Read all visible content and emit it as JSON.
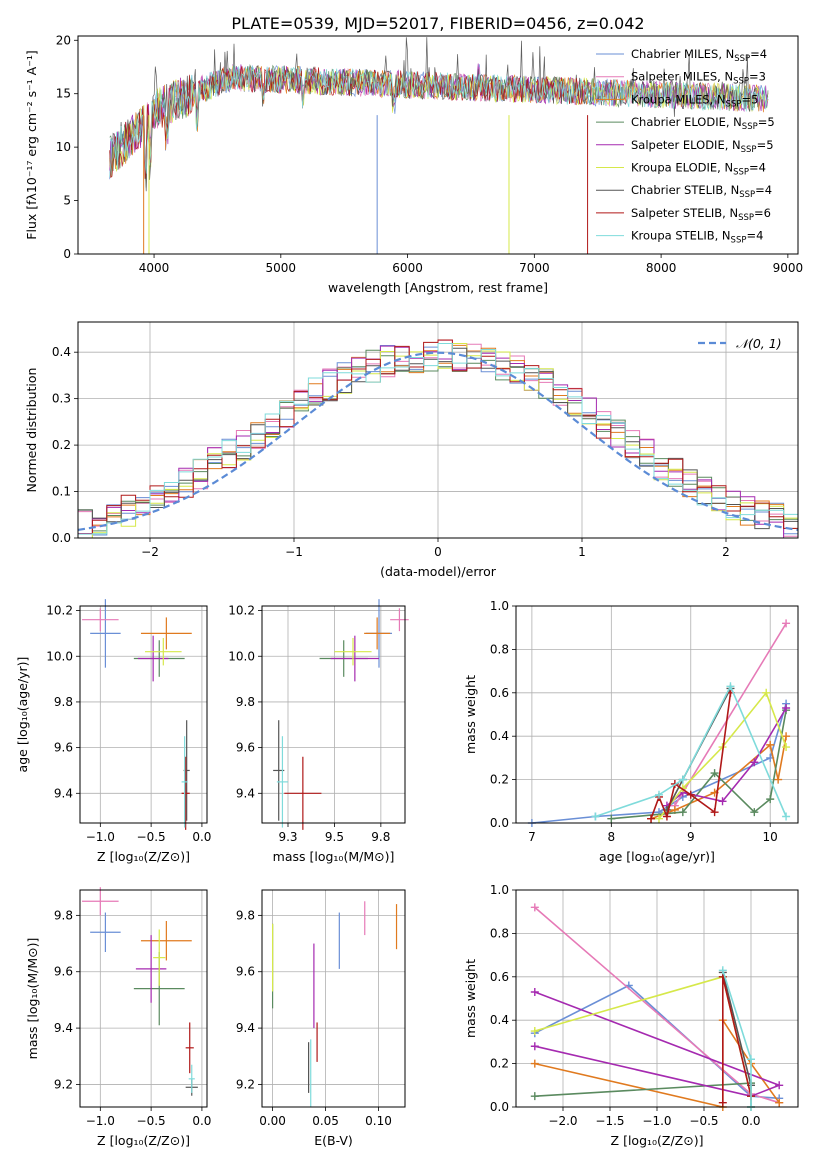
{
  "title": "PLATE=0539, MJD=52017, FIBERID=0456, z=0.042",
  "chart_data": [
    {
      "type": "line",
      "panel": "spectrum",
      "title": "PLATE=0539, MJD=52017, FIBERID=0456, z=0.042",
      "xlabel": "wavelength [Angstrom, rest frame]",
      "ylabel": "Flux [fλ10⁻¹⁷ erg cm⁻² s⁻¹ A⁻¹]",
      "xlim": [
        3400,
        9080
      ],
      "ylim": [
        0,
        20.4
      ],
      "xticks": [
        4000,
        5000,
        6000,
        7000,
        8000,
        9000
      ],
      "yticks": [
        0,
        5,
        10,
        15,
        20
      ],
      "grid": false,
      "legend_position": "upper right",
      "series": [
        {
          "name": "Chabrier MILES, N",
          "sub": "SSP",
          "suffix": "=4",
          "color": "#6a8fd6"
        },
        {
          "name": "Salpeter MILES, N",
          "sub": "SSP",
          "suffix": "=3",
          "color": "#e67ab7"
        },
        {
          "name": "Kroupa MILES, N",
          "sub": "SSP",
          "suffix": "=5",
          "color": "#e07a1f"
        },
        {
          "name": "Chabrier ELODIE, N",
          "sub": "SSP",
          "suffix": "=5",
          "color": "#5a8a5f"
        },
        {
          "name": "Salpeter ELODIE, N",
          "sub": "SSP",
          "suffix": "=5",
          "color": "#a52ab0"
        },
        {
          "name": "Kroupa ELODIE, N",
          "sub": "SSP",
          "suffix": "=4",
          "color": "#d6e84a"
        },
        {
          "name": "Chabrier STELIB, N",
          "sub": "SSP",
          "suffix": "=4",
          "color": "#555555"
        },
        {
          "name": "Salpeter STELIB, N",
          "sub": "SSP",
          "suffix": "=6",
          "color": "#b01818"
        },
        {
          "name": "Kroupa STELIB, N",
          "sub": "SSP",
          "suffix": "=4",
          "color": "#7fdbdb"
        }
      ]
    },
    {
      "type": "histogram",
      "panel": "residuals",
      "xlabel": "(data-model)/error",
      "ylabel": "Normed distribution",
      "xlim": [
        -2.5,
        2.5
      ],
      "ylim": [
        0,
        0.465
      ],
      "xticks": [
        -2,
        -1,
        0,
        1,
        2
      ],
      "yticks": [
        0.0,
        0.1,
        0.2,
        0.3,
        0.4
      ],
      "grid": true,
      "legend": "𝒩(0, 1)",
      "legend_position": "upper right",
      "bins": [
        -2.5,
        2.5,
        50
      ],
      "envelope": [
        0.03,
        0.04,
        0.05,
        0.06,
        0.07,
        0.085,
        0.1,
        0.12,
        0.14,
        0.16,
        0.18,
        0.2,
        0.22,
        0.245,
        0.27,
        0.29,
        0.31,
        0.33,
        0.345,
        0.36,
        0.37,
        0.38,
        0.385,
        0.39,
        0.392,
        0.392,
        0.39,
        0.385,
        0.38,
        0.37,
        0.36,
        0.345,
        0.33,
        0.31,
        0.29,
        0.27,
        0.245,
        0.22,
        0.2,
        0.18,
        0.16,
        0.14,
        0.12,
        0.1,
        0.085,
        0.07,
        0.06,
        0.05,
        0.04,
        0.03
      ],
      "series_colors": [
        "#6a8fd6",
        "#e67ab7",
        "#e07a1f",
        "#5a8a5f",
        "#a52ab0",
        "#d6e84a",
        "#555555",
        "#b01818",
        "#7fdbdb"
      ]
    },
    {
      "type": "errorbar",
      "panel": "age-vs-Z",
      "xlabel": "Z [log₁₀(Z/Z⊙)]",
      "ylabel": "age  [log₁₀(age/yr)]",
      "xlim": [
        -1.2,
        0.05
      ],
      "ylim": [
        9.27,
        10.22
      ],
      "xticks": [
        -1.0,
        -0.5,
        0.0
      ],
      "yticks": [
        9.4,
        9.6,
        9.8,
        10.0,
        10.2
      ],
      "points": [
        {
          "x": -0.95,
          "xerr": 0.15,
          "y": 10.1,
          "yerr": 0.15,
          "c": 0
        },
        {
          "x": -1.0,
          "xerr": 0.18,
          "y": 10.16,
          "yerr": 0.05,
          "c": 1
        },
        {
          "x": -0.35,
          "xerr": 0.25,
          "y": 10.1,
          "yerr": 0.07,
          "c": 2
        },
        {
          "x": -0.42,
          "xerr": 0.25,
          "y": 9.99,
          "yerr": 0.08,
          "c": 3
        },
        {
          "x": -0.48,
          "xerr": 0.15,
          "y": 9.99,
          "yerr": 0.1,
          "c": 4
        },
        {
          "x": -0.38,
          "xerr": 0.18,
          "y": 10.02,
          "yerr": 0.06,
          "c": 5
        },
        {
          "x": -0.15,
          "xerr": 0.03,
          "y": 9.5,
          "yerr": 0.22,
          "c": 6
        },
        {
          "x": -0.16,
          "xerr": 0.04,
          "y": 9.4,
          "yerr": 0.16,
          "c": 7
        },
        {
          "x": -0.17,
          "xerr": 0.03,
          "y": 9.45,
          "yerr": 0.2,
          "c": 8
        }
      ]
    },
    {
      "type": "errorbar",
      "panel": "age-vs-mass",
      "xlabel": "mass [log₁₀(M/M⊙)]",
      "ylabel": "",
      "xlim": [
        9.11,
        9.88
      ],
      "ylim": [
        9.27,
        10.22
      ],
      "xticks": [
        9.25,
        9.5,
        9.75
      ],
      "yticks": [
        9.4,
        9.6,
        9.8,
        10.0,
        10.2
      ],
      "points": [
        {
          "x": 9.74,
          "xerr": 0.07,
          "y": 10.1,
          "yerr": 0.15,
          "c": 0
        },
        {
          "x": 9.85,
          "xerr": 0.05,
          "y": 10.16,
          "yerr": 0.05,
          "c": 1
        },
        {
          "x": 9.73,
          "xerr": 0.07,
          "y": 10.1,
          "yerr": 0.07,
          "c": 2
        },
        {
          "x": 9.55,
          "xerr": 0.13,
          "y": 9.99,
          "yerr": 0.08,
          "c": 3
        },
        {
          "x": 9.61,
          "xerr": 0.13,
          "y": 9.99,
          "yerr": 0.1,
          "c": 4
        },
        {
          "x": 9.6,
          "xerr": 0.1,
          "y": 10.02,
          "yerr": 0.06,
          "c": 5
        },
        {
          "x": 9.2,
          "xerr": 0.03,
          "y": 9.5,
          "yerr": 0.22,
          "c": 6
        },
        {
          "x": 9.33,
          "xerr": 0.1,
          "y": 9.4,
          "yerr": 0.16,
          "c": 7
        },
        {
          "x": 9.22,
          "xerr": 0.03,
          "y": 9.45,
          "yerr": 0.2,
          "c": 8
        }
      ]
    },
    {
      "type": "line",
      "panel": "weight-vs-age",
      "xlabel": "age  [log₁₀(age/yr)]",
      "ylabel": "mass weight",
      "xlim": [
        6.8,
        10.35
      ],
      "ylim": [
        0,
        1.0
      ],
      "xticks": [
        7,
        8,
        9,
        10
      ],
      "yticks": [
        0.0,
        0.2,
        0.4,
        0.6,
        0.8,
        1.0
      ],
      "series": [
        {
          "c": 0,
          "x": [
            7.0,
            7.8,
            8.6,
            8.9,
            10.0,
            10.2
          ],
          "y": [
            0.0,
            0.03,
            0.05,
            0.12,
            0.3,
            0.55
          ]
        },
        {
          "c": 1,
          "x": [
            8.8,
            10.2
          ],
          "y": [
            0.08,
            0.92
          ]
        },
        {
          "c": 2,
          "x": [
            8.5,
            8.8,
            9.3,
            10.0,
            10.1,
            10.2
          ],
          "y": [
            0.02,
            0.06,
            0.14,
            0.36,
            0.2,
            0.4
          ]
        },
        {
          "c": 3,
          "x": [
            8.0,
            8.9,
            9.3,
            9.8,
            10.0,
            10.2
          ],
          "y": [
            0.02,
            0.05,
            0.23,
            0.05,
            0.11,
            0.52
          ]
        },
        {
          "c": 4,
          "x": [
            8.7,
            8.9,
            9.4,
            9.8,
            10.2
          ],
          "y": [
            0.08,
            0.14,
            0.1,
            0.28,
            0.53
          ]
        },
        {
          "c": 5,
          "x": [
            8.6,
            8.9,
            9.4,
            9.95,
            10.2
          ],
          "y": [
            0.02,
            0.16,
            0.35,
            0.6,
            0.35
          ]
        },
        {
          "c": 6,
          "x": [
            8.7,
            8.9,
            9.5
          ],
          "y": [
            0.06,
            0.2,
            0.62
          ]
        },
        {
          "c": 7,
          "x": [
            8.5,
            8.6,
            8.7,
            8.8,
            9.0,
            9.3,
            9.5
          ],
          "y": [
            0.02,
            0.12,
            0.03,
            0.18,
            0.13,
            0.05,
            0.6
          ]
        },
        {
          "c": 8,
          "x": [
            7.8,
            8.6,
            8.9,
            9.5,
            10.2
          ],
          "y": [
            0.03,
            0.13,
            0.2,
            0.63,
            0.03
          ]
        }
      ]
    },
    {
      "type": "errorbar",
      "panel": "mass-vs-Z",
      "xlabel": "Z [log₁₀(Z/Z⊙)]",
      "ylabel": "mass [log₁₀(M/M⊙)]",
      "xlim": [
        -1.2,
        0.05
      ],
      "ylim": [
        9.12,
        9.89
      ],
      "xticks": [
        -1.0,
        -0.5,
        0.0
      ],
      "yticks": [
        9.2,
        9.4,
        9.6,
        9.8
      ],
      "points": [
        {
          "x": -0.95,
          "xerr": 0.15,
          "y": 9.74,
          "yerr": 0.07,
          "c": 0
        },
        {
          "x": -1.0,
          "xerr": 0.18,
          "y": 9.85,
          "yerr": 0.05,
          "c": 1
        },
        {
          "x": -0.35,
          "xerr": 0.25,
          "y": 9.71,
          "yerr": 0.07,
          "c": 2
        },
        {
          "x": -0.42,
          "xerr": 0.25,
          "y": 9.54,
          "yerr": 0.13,
          "c": 3
        },
        {
          "x": -0.5,
          "xerr": 0.15,
          "y": 9.61,
          "yerr": 0.12,
          "c": 4
        },
        {
          "x": -0.42,
          "xerr": 0.06,
          "y": 9.65,
          "yerr": 0.1,
          "c": 5
        },
        {
          "x": -0.1,
          "xerr": 0.06,
          "y": 9.19,
          "yerr": 0.03,
          "c": 6
        },
        {
          "x": -0.12,
          "xerr": 0.04,
          "y": 9.33,
          "yerr": 0.09,
          "c": 7
        },
        {
          "x": -0.1,
          "xerr": 0.03,
          "y": 9.22,
          "yerr": 0.05,
          "c": 8
        }
      ]
    },
    {
      "type": "errorbar",
      "panel": "mass-vs-ebv",
      "xlabel": "E(B-V)",
      "ylabel": "",
      "xlim": [
        -0.01,
        0.125
      ],
      "ylim": [
        9.12,
        9.89
      ],
      "xticks": [
        0.0,
        0.05,
        0.1
      ],
      "yticks": [
        9.2,
        9.4,
        9.6,
        9.8
      ],
      "points": [
        {
          "x": 0.063,
          "xerr": 0,
          "y": 9.71,
          "yerr": 0.1,
          "c": 0
        },
        {
          "x": 0.087,
          "xerr": 0,
          "y": 9.79,
          "yerr": 0.06,
          "c": 1
        },
        {
          "x": 0.117,
          "xerr": 0,
          "y": 9.76,
          "yerr": 0.08,
          "c": 2
        },
        {
          "x": 0.0,
          "xerr": 0,
          "y": 9.62,
          "yerr": 0.15,
          "c": 3
        },
        {
          "x": 0.039,
          "xerr": 0,
          "y": 9.55,
          "yerr": 0.15,
          "c": 4
        },
        {
          "x": 0.0,
          "xerr": 0,
          "y": 9.65,
          "yerr": 0.12,
          "c": 5
        },
        {
          "x": 0.034,
          "xerr": 0,
          "y": 9.26,
          "yerr": 0.09,
          "c": 6
        },
        {
          "x": 0.042,
          "xerr": 0,
          "y": 9.35,
          "yerr": 0.07,
          "c": 7
        },
        {
          "x": 0.036,
          "xerr": 0,
          "y": 9.24,
          "yerr": 0.12,
          "c": 8
        }
      ]
    },
    {
      "type": "line",
      "panel": "weight-vs-Z",
      "xlabel": "Z [log₁₀(Z/Z⊙)]",
      "ylabel": "mass weight",
      "xlim": [
        -2.5,
        0.5
      ],
      "ylim": [
        0,
        1.0
      ],
      "xticks": [
        -2.0,
        -1.5,
        -1.0,
        -0.5,
        0.0
      ],
      "yticks": [
        0.0,
        0.2,
        0.4,
        0.6,
        0.8,
        1.0
      ],
      "series": [
        {
          "c": 0,
          "x": [
            -2.3,
            -1.3,
            0.0,
            0.3
          ],
          "y": [
            0.34,
            0.56,
            0.05,
            0.04
          ]
        },
        {
          "c": 1,
          "x": [
            -2.3,
            0.0,
            0.3
          ],
          "y": [
            0.92,
            0.06,
            0.02
          ]
        },
        {
          "c": 2,
          "x": [
            -2.3,
            -0.3,
            -0.3,
            0.0,
            0.3
          ],
          "y": [
            0.2,
            0.0,
            0.4,
            0.2,
            0.02
          ]
        },
        {
          "c": 3,
          "x": [
            -2.3,
            0.0,
            0.0
          ],
          "y": [
            0.05,
            0.11,
            0.0
          ]
        },
        {
          "c": 4,
          "x": [
            -2.3,
            0.0,
            0.3,
            -2.3
          ],
          "y": [
            0.28,
            0.05,
            0.1,
            0.53
          ]
        },
        {
          "c": 5,
          "x": [
            -2.3,
            -0.3,
            0.0
          ],
          "y": [
            0.35,
            0.6,
            0.05
          ]
        },
        {
          "c": 6,
          "x": [
            -0.3,
            0.0
          ],
          "y": [
            0.62,
            0.1
          ]
        },
        {
          "c": 7,
          "x": [
            -0.3,
            -0.3,
            0.0
          ],
          "y": [
            0.02,
            0.6,
            0.05
          ]
        },
        {
          "c": 8,
          "x": [
            -0.3,
            0.0,
            0.0
          ],
          "y": [
            0.63,
            0.22,
            0.0
          ]
        }
      ]
    }
  ]
}
